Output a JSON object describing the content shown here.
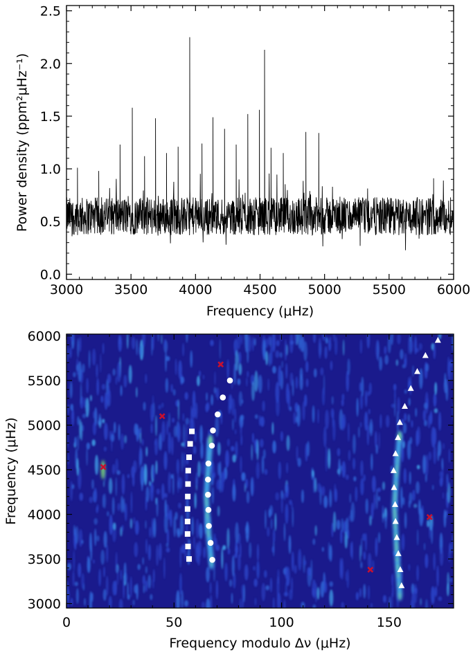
{
  "chart_data": [
    {
      "type": "line",
      "title": "",
      "xlabel": "Frequency (μHz)",
      "ylabel": "Power density (ppm²μHz⁻¹)",
      "xlim": [
        3000,
        6000
      ],
      "ylim": [
        -0.05,
        2.55
      ],
      "xticks": [
        3000,
        3500,
        4000,
        4500,
        5000,
        5500,
        6000
      ],
      "xtick_labels": [
        "3000",
        "3500",
        "4000",
        "4500",
        "5000",
        "5500",
        "6000"
      ],
      "yticks": [
        0.0,
        0.5,
        1.0,
        1.5,
        2.0,
        2.5
      ],
      "ytick_labels": [
        "0.0",
        "0.5",
        "1.0",
        "1.5",
        "2.0",
        "2.5"
      ],
      "grid": false,
      "baseline_level": 0.55,
      "noise_amplitude": 0.18,
      "peaks": [
        {
          "x": 3085,
          "y": 1.01
        },
        {
          "x": 3250,
          "y": 0.98
        },
        {
          "x": 3415,
          "y": 1.23
        },
        {
          "x": 3510,
          "y": 1.58
        },
        {
          "x": 3605,
          "y": 1.12
        },
        {
          "x": 3690,
          "y": 1.48
        },
        {
          "x": 3775,
          "y": 1.15
        },
        {
          "x": 3865,
          "y": 1.21
        },
        {
          "x": 3955,
          "y": 2.25
        },
        {
          "x": 4050,
          "y": 1.24
        },
        {
          "x": 4135,
          "y": 1.49
        },
        {
          "x": 4225,
          "y": 1.38
        },
        {
          "x": 4315,
          "y": 1.23
        },
        {
          "x": 4405,
          "y": 1.52
        },
        {
          "x": 4495,
          "y": 1.56
        },
        {
          "x": 4535,
          "y": 2.13
        },
        {
          "x": 4585,
          "y": 1.2
        },
        {
          "x": 4680,
          "y": 1.15
        },
        {
          "x": 4855,
          "y": 1.35
        },
        {
          "x": 4955,
          "y": 1.34
        },
        {
          "x": 5845,
          "y": 0.91
        }
      ]
    },
    {
      "type": "heatmap",
      "title": "",
      "xlabel": "Frequency modulo Δν (μHz)",
      "ylabel": "Frequency (μHz)",
      "xlim": [
        0,
        180
      ],
      "ylim": [
        2950,
        6020
      ],
      "xticks": [
        0,
        50,
        100,
        150
      ],
      "xtick_labels": [
        "0",
        "50",
        "100",
        "150"
      ],
      "yticks": [
        3000,
        3500,
        4000,
        4500,
        5000,
        5500,
        6000
      ],
      "ytick_labels": [
        "3000",
        "3500",
        "4000",
        "4500",
        "5000",
        "5500",
        "6000"
      ],
      "grid": false,
      "colormap": [
        "#1a1a8c",
        "#2a44c8",
        "#3fa0e8",
        "#7fe07a"
      ],
      "ridges": [
        {
          "points": [
            [
              67.5,
              3450
            ],
            [
              66,
              3800
            ],
            [
              65,
              4200
            ],
            [
              66,
              4550
            ],
            [
              67,
              4850
            ]
          ]
        },
        {
          "points": [
            [
              155,
              3100
            ],
            [
              153.5,
              3600
            ],
            [
              152.5,
              4100
            ],
            [
              153.5,
              4500
            ],
            [
              155,
              4900
            ]
          ]
        }
      ],
      "series": [
        {
          "marker": "square",
          "color": "#ffffff",
          "points": [
            [
              57,
              3500
            ],
            [
              56.5,
              3640
            ],
            [
              56.3,
              3780
            ],
            [
              56.3,
              3920
            ],
            [
              56.3,
              4060
            ],
            [
              56.4,
              4200
            ],
            [
              56.5,
              4340
            ],
            [
              56.6,
              4490
            ],
            [
              57,
              4640
            ],
            [
              57.5,
              4790
            ],
            [
              58.3,
              4930
            ]
          ]
        },
        {
          "marker": "circle",
          "color": "#ffffff",
          "points": [
            [
              67.8,
              3490
            ],
            [
              67,
              3680
            ],
            [
              66.2,
              3870
            ],
            [
              66,
              4050
            ],
            [
              65.8,
              4220
            ],
            [
              65.8,
              4390
            ],
            [
              66,
              4570
            ],
            [
              67.6,
              4770
            ],
            [
              68.1,
              4940
            ],
            [
              70.3,
              5120
            ],
            [
              72.7,
              5310
            ],
            [
              76,
              5500
            ]
          ]
        },
        {
          "marker": "triangle",
          "color": "#ffffff",
          "points": [
            [
              155.8,
              3200
            ],
            [
              155.2,
              3380
            ],
            [
              154.3,
              3560
            ],
            [
              153.6,
              3740
            ],
            [
              153,
              3920
            ],
            [
              152.8,
              4110
            ],
            [
              152.3,
              4300
            ],
            [
              152.1,
              4490
            ],
            [
              153,
              4680
            ],
            [
              154.1,
              4860
            ],
            [
              155,
              5030
            ],
            [
              157.3,
              5210
            ],
            [
              160.1,
              5410
            ],
            [
              163.1,
              5600
            ],
            [
              166.9,
              5780
            ],
            [
              172.7,
              5950
            ]
          ]
        },
        {
          "marker": "cross",
          "color": "#c8102e",
          "points": [
            [
              17.1,
              4530
            ],
            [
              44.5,
              5100
            ],
            [
              71.7,
              5680
            ],
            [
              141.3,
              3380
            ],
            [
              168.8,
              3970
            ]
          ]
        }
      ]
    }
  ]
}
